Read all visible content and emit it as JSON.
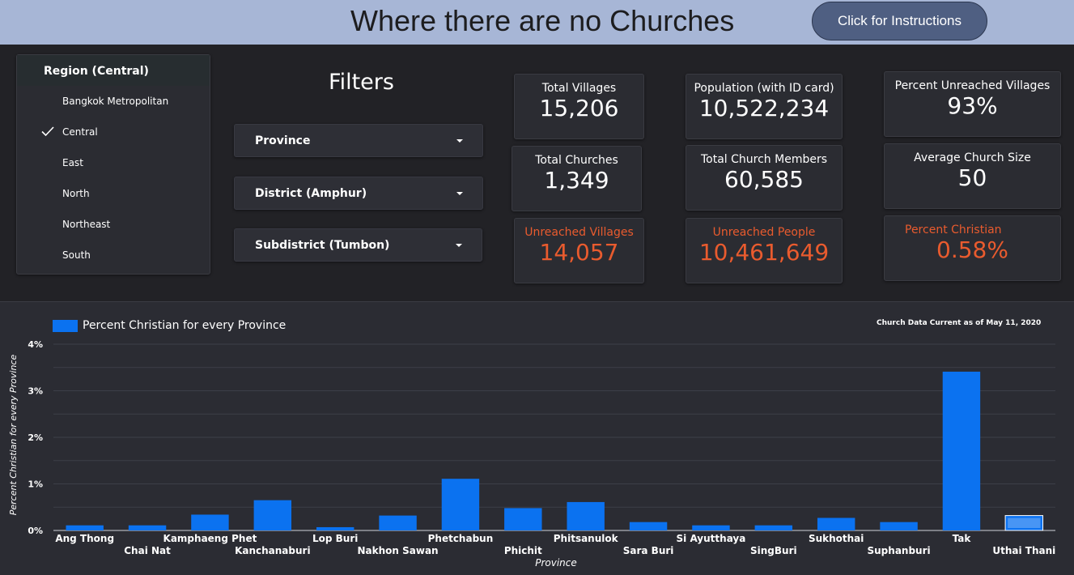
{
  "header": {
    "title": "Where there are no Churches",
    "instructions_button": "Click for Instructions"
  },
  "region_filter": {
    "header": "Region (Central)",
    "items": [
      {
        "label": "Bangkok Metropolitan",
        "checked": false
      },
      {
        "label": "Central",
        "checked": true
      },
      {
        "label": "East",
        "checked": false
      },
      {
        "label": "North",
        "checked": false
      },
      {
        "label": "Northeast",
        "checked": false
      },
      {
        "label": "South",
        "checked": false
      }
    ]
  },
  "filters": {
    "title": "Filters",
    "province": "Province",
    "district": "District (Amphur)",
    "subdistrict": "Subdistrict (Tumbon)"
  },
  "stats": {
    "total_villages": {
      "label": "Total Villages",
      "value": "15,206"
    },
    "total_churches": {
      "label": "Total Churches",
      "value": "1,349"
    },
    "unreached_villages": {
      "label": "Unreached Villages",
      "value": "14,057"
    },
    "population": {
      "label": "Population (with ID card)",
      "value": "10,522,234"
    },
    "church_members": {
      "label": "Total Church Members",
      "value": "60,585"
    },
    "unreached_people": {
      "label": "Unreached People",
      "value": "10,461,649"
    },
    "pct_unreached_villages": {
      "label": "Percent Unreached Villages",
      "value": "93%"
    },
    "avg_church_size": {
      "label": "Average Church Size",
      "value": "50"
    },
    "pct_christian": {
      "label": "Percent Christian",
      "value": "0.58%"
    }
  },
  "colors": {
    "header_bg": "#a7b6d6",
    "button_bg": "#4f5f82",
    "alert": "#e95b2e",
    "bar": "#0b72f0",
    "panel_bg": "#2b2c32"
  },
  "chart_note": "Church Data Current as of May 11, 2020",
  "chart_data": {
    "type": "bar",
    "categories": [
      "Ang Thong",
      "Chai Nat",
      "Kamphaeng Phet",
      "Kanchanaburi",
      "Lop Buri",
      "Nakhon Sawan",
      "Phetchabun",
      "Phichit",
      "Phitsanulok",
      "Sara Buri",
      "Si Ayutthaya",
      "SingBuri",
      "Sukhothai",
      "Suphanburi",
      "Tak",
      "Uthai Thani"
    ],
    "series": [
      {
        "name": "Percent Christian for every Province",
        "values": [
          0.11,
          0.11,
          0.34,
          0.65,
          0.07,
          0.32,
          1.11,
          0.48,
          0.61,
          0.18,
          0.11,
          0.11,
          0.27,
          0.18,
          3.41,
          0.32
        ]
      }
    ],
    "highlighted_category": "Uthai Thani",
    "xlabel": "Province",
    "ylabel": "Percent Christian for every Province",
    "ylim": [
      0,
      4
    ],
    "yticks": [
      "0%",
      "1%",
      "2%",
      "3%",
      "4%"
    ],
    "grid": true,
    "legend": "top-left"
  }
}
